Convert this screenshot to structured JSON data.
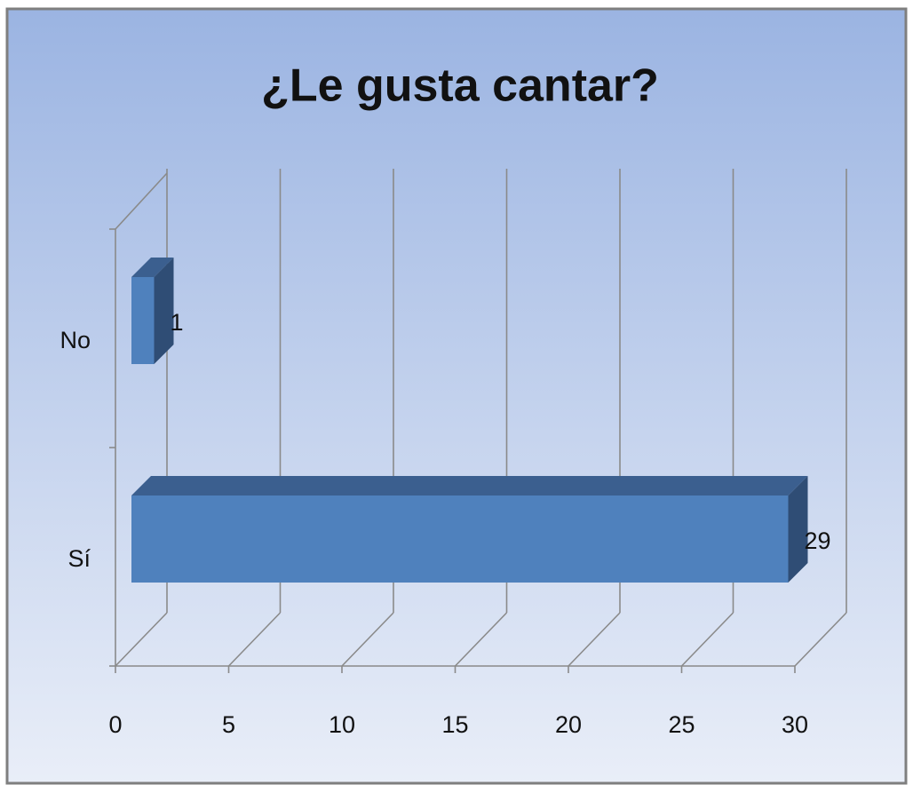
{
  "chart_data": {
    "type": "bar",
    "orientation": "horizontal",
    "title": "¿Le gusta cantar?",
    "categories": [
      "No",
      "Sí"
    ],
    "values": [
      1,
      29
    ],
    "color": "#4f81bd",
    "xlim": [
      0,
      30
    ],
    "xticks": [
      0,
      5,
      10,
      15,
      20,
      25,
      30
    ],
    "grid": true
  }
}
